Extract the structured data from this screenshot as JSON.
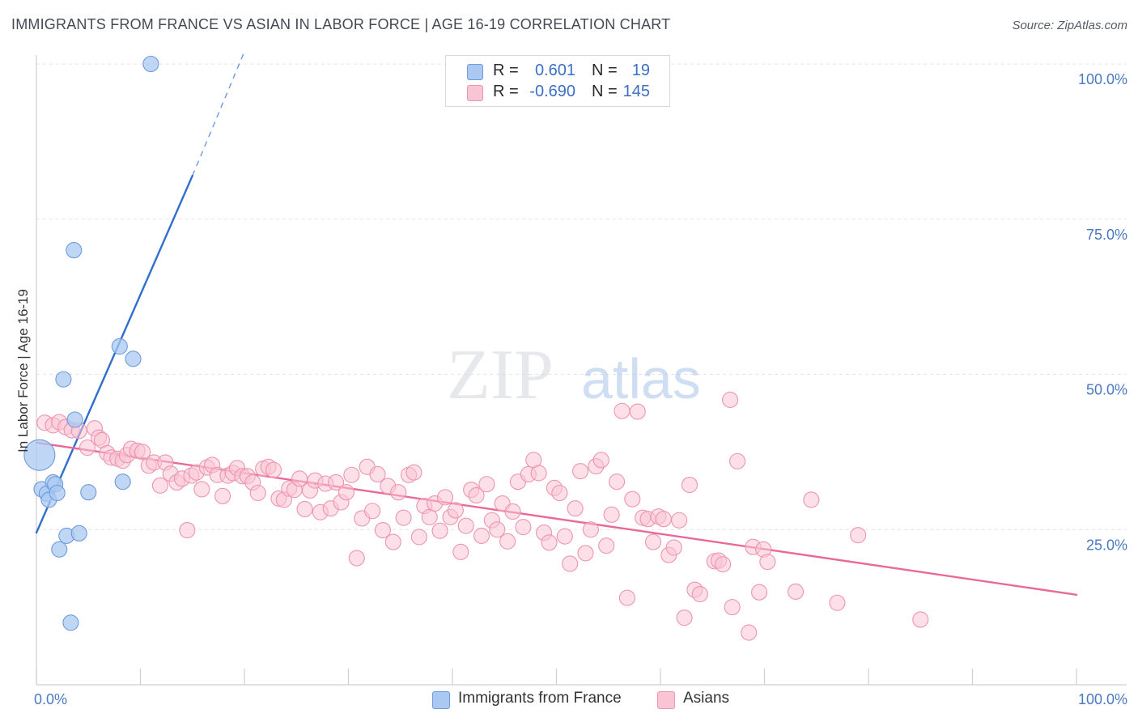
{
  "title": "IMMIGRANTS FROM FRANCE VS ASIAN IN LABOR FORCE | AGE 16-19 CORRELATION CHART",
  "source": "Source: ZipAtlas.com",
  "watermark": {
    "zip": "ZIP",
    "atlas": "atlas"
  },
  "legend": {
    "rows": [
      {
        "r_label": "R =",
        "r_value": "0.601",
        "n_label": "N =",
        "n_value": "19",
        "fill": "#aac8f2",
        "stroke": "#6e9bdc"
      },
      {
        "r_label": "R =",
        "r_value": "-0.690",
        "n_label": "N =",
        "n_value": "145",
        "fill": "#f9c4d4",
        "stroke": "#ee94b2"
      }
    ]
  },
  "bottom_legend": [
    {
      "label": "Immigrants from France",
      "fill": "#aac8f2",
      "stroke": "#6e9bdc"
    },
    {
      "label": "Asians",
      "fill": "#f9c4d4",
      "stroke": "#ee94b2"
    }
  ],
  "chart_data": {
    "type": "scatter",
    "title": "IMMIGRANTS FROM FRANCE VS ASIAN IN LABOR FORCE | AGE 16-19 CORRELATION CHART",
    "xlabel": "",
    "ylabel": "In Labor Force | Age 16-19",
    "xlim": [
      0,
      100
    ],
    "ylim": [
      0,
      100
    ],
    "x_tick_labels": [
      "0.0%",
      "100.0%"
    ],
    "y_ticks": [
      25,
      50,
      75,
      100
    ],
    "y_tick_labels": [
      "25.0%",
      "50.0%",
      "75.0%",
      "100.0%"
    ],
    "grid": true,
    "legend_position": "top-center",
    "series": [
      {
        "name": "Immigrants from France",
        "color": "#aac8f2",
        "stroke": "#6e9bdc",
        "line_color": "#2f6fcc",
        "trend": {
          "x": [
            0,
            15
          ],
          "y": [
            24.5,
            82.0
          ],
          "dashed_to": [
            20,
            102
          ]
        },
        "points": [
          {
            "x": 0.3,
            "y": 37.0,
            "big": true
          },
          {
            "x": 0.5,
            "y": 31.5
          },
          {
            "x": 1.0,
            "y": 30.8
          },
          {
            "x": 1.2,
            "y": 29.8
          },
          {
            "x": 1.6,
            "y": 32.6
          },
          {
            "x": 1.8,
            "y": 32.3
          },
          {
            "x": 2.0,
            "y": 30.9
          },
          {
            "x": 2.2,
            "y": 21.8
          },
          {
            "x": 2.6,
            "y": 49.2
          },
          {
            "x": 2.9,
            "y": 24.0
          },
          {
            "x": 3.3,
            "y": 10.0
          },
          {
            "x": 3.6,
            "y": 70.0
          },
          {
            "x": 3.7,
            "y": 42.7
          },
          {
            "x": 4.1,
            "y": 24.4
          },
          {
            "x": 5.0,
            "y": 31.0
          },
          {
            "x": 8.0,
            "y": 54.5
          },
          {
            "x": 8.3,
            "y": 32.7
          },
          {
            "x": 9.3,
            "y": 52.5
          },
          {
            "x": 11.0,
            "y": 100.0
          }
        ]
      },
      {
        "name": "Asians",
        "color": "#f9c4d4",
        "stroke": "#ee94b2",
        "line_color": "#e8699a",
        "trend": {
          "x": [
            0,
            100
          ],
          "y": [
            39.0,
            14.5
          ]
        },
        "points": [
          {
            "x": 0.8,
            "y": 42.2
          },
          {
            "x": 1.6,
            "y": 41.8
          },
          {
            "x": 2.2,
            "y": 42.3
          },
          {
            "x": 2.8,
            "y": 41.5
          },
          {
            "x": 3.4,
            "y": 41.0
          },
          {
            "x": 4.1,
            "y": 40.9
          },
          {
            "x": 4.9,
            "y": 38.2
          },
          {
            "x": 5.6,
            "y": 41.3
          },
          {
            "x": 6.0,
            "y": 39.8
          },
          {
            "x": 6.3,
            "y": 39.4
          },
          {
            "x": 6.8,
            "y": 37.3
          },
          {
            "x": 7.2,
            "y": 36.6
          },
          {
            "x": 7.8,
            "y": 36.4
          },
          {
            "x": 8.3,
            "y": 36.1
          },
          {
            "x": 8.7,
            "y": 37.0
          },
          {
            "x": 9.1,
            "y": 38.0
          },
          {
            "x": 9.7,
            "y": 37.7
          },
          {
            "x": 10.2,
            "y": 37.5
          },
          {
            "x": 10.8,
            "y": 35.3
          },
          {
            "x": 11.3,
            "y": 35.8
          },
          {
            "x": 11.9,
            "y": 32.1
          },
          {
            "x": 12.4,
            "y": 35.8
          },
          {
            "x": 12.9,
            "y": 34.0
          },
          {
            "x": 13.5,
            "y": 32.6
          },
          {
            "x": 14.0,
            "y": 33.2
          },
          {
            "x": 14.5,
            "y": 24.9
          },
          {
            "x": 14.9,
            "y": 33.7
          },
          {
            "x": 15.4,
            "y": 34.2
          },
          {
            "x": 15.9,
            "y": 31.5
          },
          {
            "x": 16.4,
            "y": 35.0
          },
          {
            "x": 16.9,
            "y": 35.4
          },
          {
            "x": 17.4,
            "y": 33.8
          },
          {
            "x": 17.9,
            "y": 30.4
          },
          {
            "x": 18.4,
            "y": 33.7
          },
          {
            "x": 18.9,
            "y": 34.1
          },
          {
            "x": 19.3,
            "y": 34.9
          },
          {
            "x": 19.8,
            "y": 33.6
          },
          {
            "x": 20.3,
            "y": 33.6
          },
          {
            "x": 20.8,
            "y": 32.6
          },
          {
            "x": 21.3,
            "y": 30.9
          },
          {
            "x": 21.8,
            "y": 34.8
          },
          {
            "x": 22.3,
            "y": 35.1
          },
          {
            "x": 22.8,
            "y": 34.6
          },
          {
            "x": 23.3,
            "y": 30.0
          },
          {
            "x": 23.8,
            "y": 29.8
          },
          {
            "x": 24.3,
            "y": 31.6
          },
          {
            "x": 24.8,
            "y": 31.4
          },
          {
            "x": 25.3,
            "y": 33.2
          },
          {
            "x": 25.8,
            "y": 28.3
          },
          {
            "x": 26.3,
            "y": 31.3
          },
          {
            "x": 26.8,
            "y": 32.9
          },
          {
            "x": 27.3,
            "y": 27.8
          },
          {
            "x": 27.8,
            "y": 32.4
          },
          {
            "x": 28.3,
            "y": 28.4
          },
          {
            "x": 28.8,
            "y": 32.6
          },
          {
            "x": 29.3,
            "y": 29.4
          },
          {
            "x": 29.8,
            "y": 31.0
          },
          {
            "x": 30.3,
            "y": 33.8
          },
          {
            "x": 30.8,
            "y": 20.4
          },
          {
            "x": 31.3,
            "y": 26.8
          },
          {
            "x": 31.8,
            "y": 35.1
          },
          {
            "x": 32.3,
            "y": 28.0
          },
          {
            "x": 32.8,
            "y": 33.9
          },
          {
            "x": 33.3,
            "y": 24.9
          },
          {
            "x": 33.8,
            "y": 32.0
          },
          {
            "x": 34.3,
            "y": 23.0
          },
          {
            "x": 34.8,
            "y": 31.0
          },
          {
            "x": 35.3,
            "y": 26.9
          },
          {
            "x": 35.8,
            "y": 33.8
          },
          {
            "x": 36.3,
            "y": 34.2
          },
          {
            "x": 36.8,
            "y": 23.8
          },
          {
            "x": 37.3,
            "y": 28.8
          },
          {
            "x": 37.8,
            "y": 27.0
          },
          {
            "x": 38.3,
            "y": 29.2
          },
          {
            "x": 38.8,
            "y": 24.8
          },
          {
            "x": 39.3,
            "y": 30.2
          },
          {
            "x": 39.8,
            "y": 27.0
          },
          {
            "x": 40.3,
            "y": 28.1
          },
          {
            "x": 40.8,
            "y": 21.4
          },
          {
            "x": 41.3,
            "y": 25.6
          },
          {
            "x": 41.8,
            "y": 31.4
          },
          {
            "x": 42.3,
            "y": 30.5
          },
          {
            "x": 42.8,
            "y": 24.0
          },
          {
            "x": 43.3,
            "y": 32.3
          },
          {
            "x": 43.8,
            "y": 26.5
          },
          {
            "x": 44.3,
            "y": 25.0
          },
          {
            "x": 44.8,
            "y": 29.2
          },
          {
            "x": 45.3,
            "y": 23.1
          },
          {
            "x": 45.8,
            "y": 27.9
          },
          {
            "x": 46.3,
            "y": 32.7
          },
          {
            "x": 46.8,
            "y": 25.4
          },
          {
            "x": 47.3,
            "y": 33.9
          },
          {
            "x": 47.8,
            "y": 36.2
          },
          {
            "x": 48.3,
            "y": 34.1
          },
          {
            "x": 48.8,
            "y": 24.5
          },
          {
            "x": 49.3,
            "y": 22.9
          },
          {
            "x": 49.8,
            "y": 31.7
          },
          {
            "x": 50.3,
            "y": 30.9
          },
          {
            "x": 50.8,
            "y": 23.9
          },
          {
            "x": 51.3,
            "y": 19.5
          },
          {
            "x": 51.8,
            "y": 28.4
          },
          {
            "x": 52.3,
            "y": 34.4
          },
          {
            "x": 52.8,
            "y": 21.2
          },
          {
            "x": 53.3,
            "y": 25.0
          },
          {
            "x": 53.8,
            "y": 35.2
          },
          {
            "x": 54.3,
            "y": 36.2
          },
          {
            "x": 54.8,
            "y": 22.4
          },
          {
            "x": 55.3,
            "y": 27.4
          },
          {
            "x": 55.8,
            "y": 32.7
          },
          {
            "x": 56.3,
            "y": 44.1
          },
          {
            "x": 56.8,
            "y": 14.0
          },
          {
            "x": 57.3,
            "y": 29.9
          },
          {
            "x": 57.8,
            "y": 44.0
          },
          {
            "x": 58.3,
            "y": 26.9
          },
          {
            "x": 58.8,
            "y": 26.7
          },
          {
            "x": 59.3,
            "y": 23.0
          },
          {
            "x": 59.8,
            "y": 27.1
          },
          {
            "x": 60.3,
            "y": 26.7
          },
          {
            "x": 60.8,
            "y": 20.9
          },
          {
            "x": 61.3,
            "y": 22.1
          },
          {
            "x": 61.8,
            "y": 26.5
          },
          {
            "x": 62.3,
            "y": 10.8
          },
          {
            "x": 62.8,
            "y": 32.2
          },
          {
            "x": 63.3,
            "y": 15.3
          },
          {
            "x": 63.8,
            "y": 14.6
          },
          {
            "x": 65.2,
            "y": 19.9
          },
          {
            "x": 65.6,
            "y": 20.0
          },
          {
            "x": 66.0,
            "y": 19.4
          },
          {
            "x": 66.7,
            "y": 45.9
          },
          {
            "x": 66.9,
            "y": 12.5
          },
          {
            "x": 67.4,
            "y": 36.0
          },
          {
            "x": 68.5,
            "y": 8.4
          },
          {
            "x": 68.9,
            "y": 22.2
          },
          {
            "x": 69.5,
            "y": 14.9
          },
          {
            "x": 69.9,
            "y": 21.8
          },
          {
            "x": 70.3,
            "y": 19.8
          },
          {
            "x": 73.0,
            "y": 15.0
          },
          {
            "x": 74.5,
            "y": 29.8
          },
          {
            "x": 77.0,
            "y": 13.2
          },
          {
            "x": 79.0,
            "y": 24.1
          },
          {
            "x": 85.0,
            "y": 10.5
          }
        ]
      }
    ]
  }
}
